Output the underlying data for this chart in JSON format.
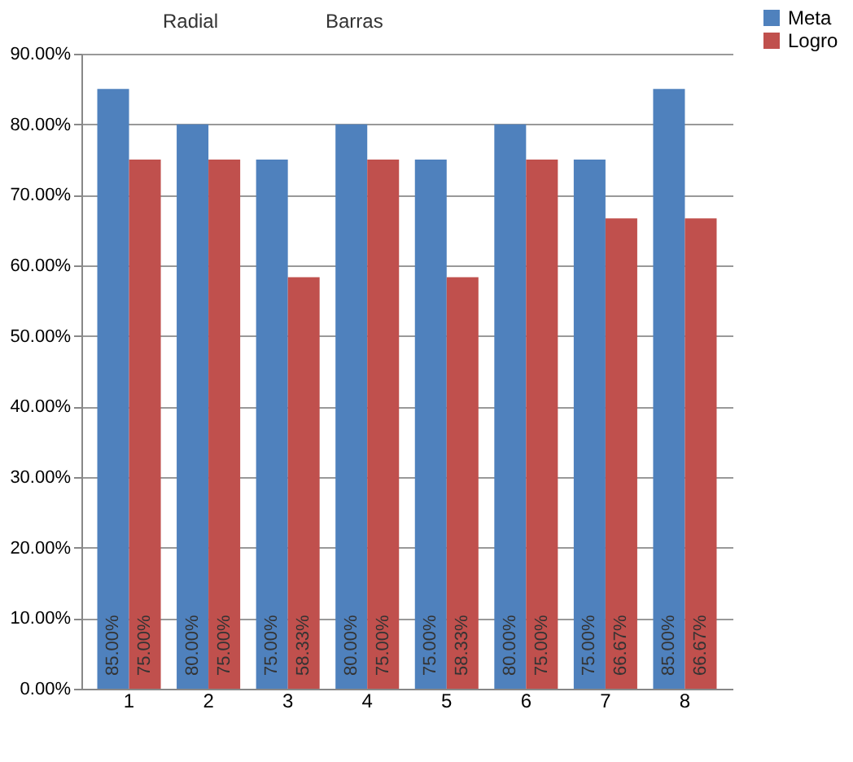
{
  "chart_data": {
    "type": "bar",
    "annotations": [
      "Radial",
      "Barras"
    ],
    "categories": [
      "1",
      "2",
      "3",
      "4",
      "5",
      "6",
      "7",
      "8"
    ],
    "series": [
      {
        "name": "Meta",
        "color": "#4f81bd",
        "values": [
          85,
          80,
          75,
          80,
          75,
          80,
          75,
          85
        ],
        "value_labels": [
          "85.00%",
          "80.00%",
          "75.00%",
          "80.00%",
          "75.00%",
          "80.00%",
          "75.00%",
          "85.00%"
        ]
      },
      {
        "name": "Logro",
        "color": "#c0504d",
        "values": [
          75,
          75,
          58.33,
          75,
          58.33,
          75,
          66.67,
          66.67
        ],
        "value_labels": [
          "75.00%",
          "75.00%",
          "58.33%",
          "75.00%",
          "58.33%",
          "75.00%",
          "66.67%",
          "66.67%"
        ]
      }
    ],
    "ylim": [
      0,
      90
    ],
    "yticks": [
      {
        "value": 0,
        "label": "0.00%"
      },
      {
        "value": 10,
        "label": "10.00%"
      },
      {
        "value": 20,
        "label": "20.00%"
      },
      {
        "value": 30,
        "label": "30.00%"
      },
      {
        "value": 40,
        "label": "40.00%"
      },
      {
        "value": 50,
        "label": "50.00%"
      },
      {
        "value": 60,
        "label": "60.00%"
      },
      {
        "value": 70,
        "label": "70.00%"
      },
      {
        "value": 80,
        "label": "80.00%"
      },
      {
        "value": 90,
        "label": "90.00%"
      }
    ],
    "grid": "y",
    "legend": "right"
  }
}
